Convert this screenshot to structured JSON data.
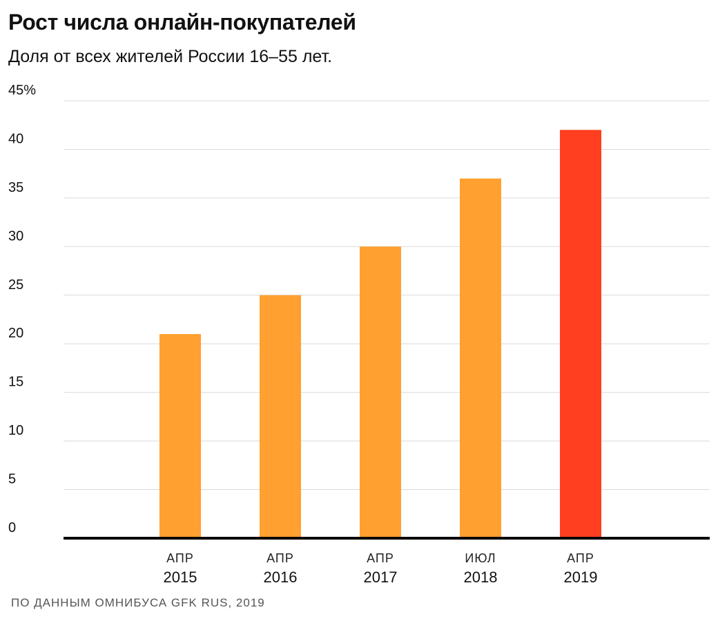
{
  "title": "Рост числа онлайн-покупателей",
  "subtitle": "Доля от всех жителей России 16–55 лет.",
  "source": "ПО ДАННЫМ ОМНИБУСА GFK RUS, 2019",
  "colors": {
    "bar": "#FFA030",
    "highlight": "#FF3F20",
    "grid": "#d9d9d9",
    "axis": "#000000"
  },
  "chart_data": {
    "type": "bar",
    "categories": [
      {
        "month": "АПР",
        "year": "2015"
      },
      {
        "month": "АПР",
        "year": "2016"
      },
      {
        "month": "АПР",
        "year": "2017"
      },
      {
        "month": "ИЮЛ",
        "year": "2018"
      },
      {
        "month": "АПР",
        "year": "2019"
      }
    ],
    "values": [
      21,
      25,
      30,
      37,
      42
    ],
    "highlight_index": 4,
    "unit": "%",
    "ylim": [
      0,
      45
    ],
    "yticks": [
      0,
      5,
      10,
      15,
      20,
      25,
      30,
      35,
      40,
      45
    ],
    "ytick_labels": [
      "0",
      "5",
      "10",
      "15",
      "20",
      "25",
      "30",
      "35",
      "40",
      "45%"
    ],
    "grid": true
  }
}
